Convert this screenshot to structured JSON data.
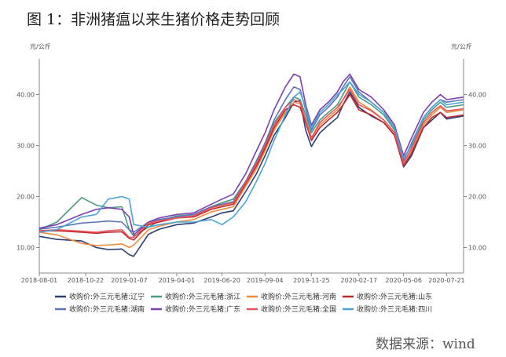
{
  "title": "图 1：非洲猪瘟以来生猪价格走势回顾",
  "source": "数据来源：wind",
  "chart_data": {
    "type": "line",
    "y_unit_left": "元/公斤",
    "y_unit_right": "元/公斤",
    "ylim": [
      5,
      47
    ],
    "yticks": [
      10,
      20,
      30,
      40
    ],
    "ytick_labels": [
      "10.00",
      "20.00",
      "30.00",
      "40.00"
    ],
    "xlim": [
      "2018-08-01",
      "2020-08-20"
    ],
    "xtick_labels": [
      "2018-08-01",
      "2018-10-22",
      "2019-01-07",
      "2019-04-01",
      "2019-06-20",
      "2019-09-04",
      "2019-11-25",
      "2020-02-17",
      "2020-05-06",
      "2020-07-21"
    ],
    "grid": false,
    "legend_position": "bottom",
    "series": [
      {
        "name": "收购价:外三元毛猪:辽宁",
        "color": "#2e3f73",
        "x": [
          "2018-08-01",
          "2018-09-01",
          "2018-10-15",
          "2018-11-10",
          "2018-12-01",
          "2018-12-25",
          "2019-01-07",
          "2019-01-15",
          "2019-02-10",
          "2019-03-01",
          "2019-04-01",
          "2019-05-01",
          "2019-06-01",
          "2019-06-20",
          "2019-07-10",
          "2019-08-01",
          "2019-08-20",
          "2019-09-04",
          "2019-09-20",
          "2019-10-10",
          "2019-10-25",
          "2019-11-05",
          "2019-11-15",
          "2019-11-25",
          "2019-12-10",
          "2019-12-25",
          "2020-01-10",
          "2020-01-20",
          "2020-02-01",
          "2020-02-17",
          "2020-03-10",
          "2020-04-01",
          "2020-04-20",
          "2020-05-06",
          "2020-05-20",
          "2020-06-10",
          "2020-06-25",
          "2020-07-10",
          "2020-07-21",
          "2020-08-20"
        ],
        "y": [
          12.2,
          11.6,
          11.3,
          10.0,
          9.6,
          9.7,
          8.6,
          8.3,
          12.6,
          13.6,
          14.5,
          14.8,
          16.0,
          16.8,
          17.2,
          21.0,
          24.5,
          28.0,
          32.0,
          35.5,
          38.5,
          38.8,
          33.0,
          29.8,
          32.5,
          34.0,
          35.5,
          38.0,
          40.5,
          37.5,
          35.8,
          34.5,
          32.0,
          25.8,
          28.0,
          33.5,
          35.0,
          36.5,
          35.2,
          35.8
        ]
      },
      {
        "name": "收购价:外三元毛猪:浙江",
        "color": "#4a9a86",
        "x": [
          "2018-08-01",
          "2018-09-01",
          "2018-10-15",
          "2018-11-10",
          "2018-12-01",
          "2018-12-25",
          "2019-01-07",
          "2019-01-15",
          "2019-02-10",
          "2019-03-01",
          "2019-04-01",
          "2019-05-01",
          "2019-06-01",
          "2019-06-20",
          "2019-07-10",
          "2019-08-01",
          "2019-08-20",
          "2019-09-04",
          "2019-09-20",
          "2019-10-10",
          "2019-10-25",
          "2019-11-05",
          "2019-11-15",
          "2019-11-25",
          "2019-12-10",
          "2019-12-25",
          "2020-01-10",
          "2020-01-20",
          "2020-02-01",
          "2020-02-17",
          "2020-03-10",
          "2020-04-01",
          "2020-04-20",
          "2020-05-06",
          "2020-05-20",
          "2020-06-10",
          "2020-06-25",
          "2020-07-10",
          "2020-07-21",
          "2020-08-20"
        ],
        "y": [
          13.5,
          15.0,
          19.8,
          18.3,
          17.8,
          18.0,
          13.5,
          12.2,
          14.0,
          15.2,
          16.2,
          16.5,
          18.0,
          18.8,
          19.5,
          23.0,
          27.0,
          30.5,
          34.5,
          37.5,
          39.5,
          39.0,
          36.0,
          32.5,
          35.0,
          36.5,
          38.0,
          40.0,
          42.5,
          39.5,
          38.0,
          36.0,
          33.0,
          27.5,
          30.0,
          35.0,
          37.0,
          38.5,
          37.5,
          38.0
        ]
      },
      {
        "name": "收购价:外三元毛猪:河南",
        "color": "#f08a3c",
        "x": [
          "2018-08-01",
          "2018-09-01",
          "2018-10-15",
          "2018-11-10",
          "2018-12-01",
          "2018-12-25",
          "2019-01-07",
          "2019-01-15",
          "2019-02-10",
          "2019-03-01",
          "2019-04-01",
          "2019-05-01",
          "2019-06-01",
          "2019-06-20",
          "2019-07-10",
          "2019-08-01",
          "2019-08-20",
          "2019-09-04",
          "2019-09-20",
          "2019-10-10",
          "2019-10-25",
          "2019-11-05",
          "2019-11-15",
          "2019-11-25",
          "2019-12-10",
          "2019-12-25",
          "2020-01-10",
          "2020-01-20",
          "2020-02-01",
          "2020-02-17",
          "2020-03-10",
          "2020-04-01",
          "2020-04-20",
          "2020-05-06",
          "2020-05-20",
          "2020-06-10",
          "2020-06-25",
          "2020-07-10",
          "2020-07-21",
          "2020-08-20"
        ],
        "y": [
          13.0,
          12.5,
          10.8,
          10.4,
          10.5,
          10.7,
          10.0,
          10.5,
          13.5,
          14.2,
          15.0,
          15.5,
          17.0,
          17.5,
          18.0,
          22.0,
          25.5,
          29.0,
          33.0,
          36.5,
          38.5,
          38.2,
          35.0,
          31.5,
          34.0,
          35.5,
          37.0,
          39.0,
          41.5,
          38.5,
          37.0,
          35.0,
          32.5,
          26.5,
          29.0,
          34.0,
          36.0,
          37.5,
          36.5,
          37.0
        ]
      },
      {
        "name": "收购价:外三元毛猪:山东",
        "color": "#c0282d",
        "x": [
          "2018-08-01",
          "2018-09-01",
          "2018-10-15",
          "2018-11-10",
          "2018-12-01",
          "2018-12-25",
          "2019-01-07",
          "2019-01-15",
          "2019-02-10",
          "2019-03-01",
          "2019-04-01",
          "2019-05-01",
          "2019-06-01",
          "2019-06-20",
          "2019-07-10",
          "2019-08-01",
          "2019-08-20",
          "2019-09-04",
          "2019-09-20",
          "2019-10-10",
          "2019-10-25",
          "2019-11-05",
          "2019-11-15",
          "2019-11-25",
          "2019-12-10",
          "2019-12-25",
          "2020-01-10",
          "2020-01-20",
          "2020-02-01",
          "2020-02-17",
          "2020-03-10",
          "2020-04-01",
          "2020-04-20",
          "2020-05-06",
          "2020-05-20",
          "2020-06-10",
          "2020-06-25",
          "2020-07-10",
          "2020-07-21",
          "2020-08-20"
        ],
        "y": [
          13.2,
          13.3,
          13.0,
          12.8,
          13.0,
          13.1,
          11.8,
          11.5,
          14.5,
          15.0,
          15.8,
          16.0,
          17.5,
          18.0,
          18.5,
          22.5,
          26.0,
          29.5,
          33.5,
          37.0,
          38.0,
          37.5,
          34.5,
          31.0,
          33.5,
          35.0,
          36.5,
          38.0,
          40.0,
          37.0,
          36.0,
          34.5,
          32.0,
          26.0,
          28.5,
          33.5,
          35.5,
          36.5,
          35.5,
          36.0
        ]
      },
      {
        "name": "收购价:外三元毛猪:湖南",
        "color": "#5b74b8",
        "x": [
          "2018-08-01",
          "2018-09-01",
          "2018-10-15",
          "2018-11-10",
          "2018-12-01",
          "2018-12-25",
          "2019-01-07",
          "2019-01-15",
          "2019-02-10",
          "2019-03-01",
          "2019-04-01",
          "2019-05-01",
          "2019-06-01",
          "2019-06-20",
          "2019-07-10",
          "2019-08-01",
          "2019-08-20",
          "2019-09-04",
          "2019-09-20",
          "2019-10-10",
          "2019-10-25",
          "2019-11-05",
          "2019-11-15",
          "2019-11-25",
          "2019-12-10",
          "2019-12-25",
          "2020-01-10",
          "2020-01-20",
          "2020-02-01",
          "2020-02-17",
          "2020-03-10",
          "2020-04-01",
          "2020-04-20",
          "2020-05-06",
          "2020-05-20",
          "2020-06-10",
          "2020-06-25",
          "2020-07-10",
          "2020-07-21",
          "2020-08-20"
        ],
        "y": [
          13.6,
          14.0,
          14.8,
          15.0,
          15.2,
          15.0,
          13.5,
          13.0,
          15.0,
          15.5,
          16.0,
          16.5,
          18.0,
          18.5,
          19.0,
          23.0,
          27.0,
          30.5,
          35.0,
          39.0,
          41.5,
          41.0,
          37.0,
          33.0,
          36.0,
          37.5,
          39.5,
          41.5,
          43.5,
          40.5,
          38.5,
          36.5,
          33.5,
          27.0,
          30.5,
          35.5,
          37.5,
          39.0,
          38.5,
          39.0
        ]
      },
      {
        "name": "收购价:外三元毛猪:广东",
        "color": "#7b3fb0",
        "x": [
          "2018-08-01",
          "2018-09-01",
          "2018-10-15",
          "2018-11-10",
          "2018-12-01",
          "2018-12-25",
          "2019-01-07",
          "2019-01-15",
          "2019-02-10",
          "2019-03-01",
          "2019-04-01",
          "2019-05-01",
          "2019-06-01",
          "2019-06-20",
          "2019-07-10",
          "2019-08-01",
          "2019-08-20",
          "2019-09-04",
          "2019-09-20",
          "2019-10-10",
          "2019-10-25",
          "2019-11-05",
          "2019-11-15",
          "2019-11-25",
          "2019-12-10",
          "2019-12-25",
          "2020-01-10",
          "2020-01-20",
          "2020-02-01",
          "2020-02-17",
          "2020-03-10",
          "2020-04-01",
          "2020-04-20",
          "2020-05-06",
          "2020-05-20",
          "2020-06-10",
          "2020-06-25",
          "2020-07-10",
          "2020-07-21",
          "2020-08-20"
        ],
        "y": [
          13.8,
          14.5,
          16.5,
          17.5,
          17.8,
          17.5,
          16.0,
          12.5,
          15.0,
          15.8,
          16.5,
          16.8,
          18.5,
          19.5,
          20.5,
          24.5,
          29.0,
          32.5,
          37.0,
          41.5,
          44.0,
          43.5,
          38.0,
          34.0,
          37.0,
          38.5,
          40.5,
          42.5,
          44.0,
          41.0,
          39.5,
          37.0,
          34.0,
          28.0,
          31.5,
          36.5,
          38.5,
          40.0,
          39.0,
          39.5
        ]
      },
      {
        "name": "收购价:外三元毛猪:全国",
        "color": "#e8545c",
        "x": [
          "2018-08-01",
          "2018-09-01",
          "2018-10-15",
          "2018-11-10",
          "2018-12-01",
          "2018-12-25",
          "2019-01-07",
          "2019-01-15",
          "2019-02-10",
          "2019-03-01",
          "2019-04-01",
          "2019-05-01",
          "2019-06-01",
          "2019-06-20",
          "2019-07-10",
          "2019-08-01",
          "2019-08-20",
          "2019-09-04",
          "2019-09-20",
          "2019-10-10",
          "2019-10-25",
          "2019-11-05",
          "2019-11-15",
          "2019-11-25",
          "2019-12-10",
          "2019-12-25",
          "2020-01-10",
          "2020-01-20",
          "2020-02-01",
          "2020-02-17",
          "2020-03-10",
          "2020-04-01",
          "2020-04-20",
          "2020-05-06",
          "2020-05-20",
          "2020-06-10",
          "2020-06-25",
          "2020-07-10",
          "2020-07-21",
          "2020-08-20"
        ],
        "y": [
          13.3,
          13.5,
          13.2,
          13.0,
          13.3,
          13.5,
          12.0,
          12.0,
          14.8,
          15.2,
          15.8,
          16.2,
          17.8,
          18.3,
          18.8,
          22.8,
          26.5,
          30.0,
          34.0,
          37.5,
          39.0,
          38.5,
          35.0,
          31.5,
          34.5,
          36.0,
          37.5,
          39.0,
          41.0,
          38.0,
          36.8,
          35.0,
          32.5,
          26.5,
          29.5,
          34.5,
          36.5,
          37.8,
          36.8,
          37.2
        ]
      },
      {
        "name": "收购价:外三元毛猪:四川",
        "color": "#4aa3d8",
        "x": [
          "2018-08-01",
          "2018-09-01",
          "2018-10-15",
          "2018-11-10",
          "2018-12-01",
          "2018-12-25",
          "2019-01-07",
          "2019-01-15",
          "2019-02-10",
          "2019-03-01",
          "2019-04-01",
          "2019-05-01",
          "2019-06-01",
          "2019-06-20",
          "2019-07-10",
          "2019-08-01",
          "2019-08-20",
          "2019-09-04",
          "2019-09-20",
          "2019-10-10",
          "2019-10-25",
          "2019-11-05",
          "2019-11-15",
          "2019-11-25",
          "2019-12-10",
          "2019-12-25",
          "2020-01-10",
          "2020-01-20",
          "2020-02-01",
          "2020-02-17",
          "2020-03-10",
          "2020-04-01",
          "2020-04-20",
          "2020-05-06",
          "2020-05-20",
          "2020-06-10",
          "2020-06-25",
          "2020-07-10",
          "2020-07-21",
          "2020-08-20"
        ],
        "y": [
          13.0,
          13.5,
          16.0,
          16.5,
          19.5,
          20.0,
          19.5,
          14.5,
          14.0,
          14.5,
          15.0,
          15.0,
          15.5,
          14.5,
          16.0,
          19.0,
          23.0,
          26.5,
          31.0,
          36.0,
          39.5,
          40.5,
          37.5,
          33.5,
          36.5,
          38.0,
          40.0,
          41.0,
          42.5,
          40.0,
          38.5,
          36.5,
          33.5,
          27.5,
          30.0,
          35.5,
          37.5,
          39.0,
          38.0,
          38.5
        ]
      }
    ]
  }
}
